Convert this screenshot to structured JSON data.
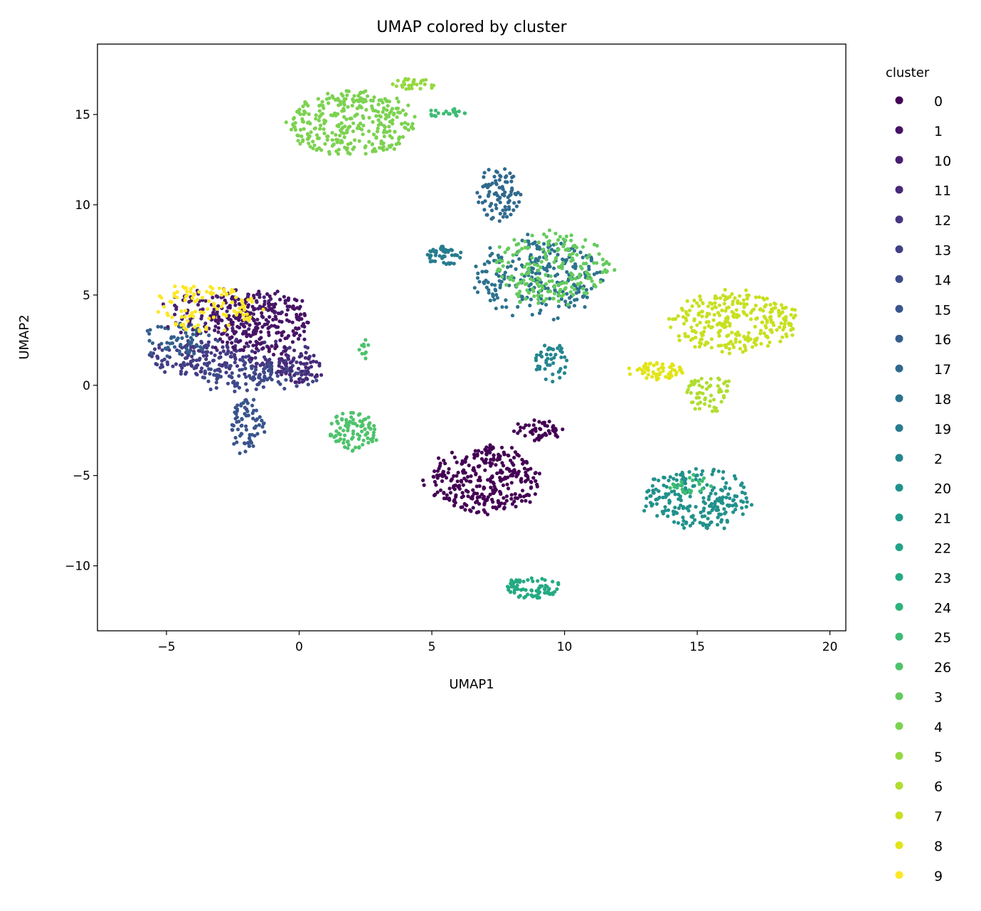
{
  "chart_data": {
    "type": "scatter",
    "title": "UMAP colored by cluster",
    "xlabel": "UMAP1",
    "ylabel": "UMAP2",
    "xlim": [
      -7.6,
      20.6
    ],
    "ylim": [
      -13.6,
      18.9
    ],
    "xticks": [
      -5,
      0,
      5,
      10,
      15,
      20
    ],
    "yticks": [
      -10,
      -5,
      0,
      5,
      10,
      15
    ],
    "xtick_labels": [
      "−5",
      "0",
      "5",
      "10",
      "15",
      "20"
    ],
    "ytick_labels": [
      "−10",
      "−5",
      "0",
      "5",
      "10",
      "15"
    ],
    "grid": false,
    "legend": {
      "title": "cluster",
      "placement": "right-outside",
      "entries": [
        {
          "label": "0",
          "color": "#440154"
        },
        {
          "label": "1",
          "color": "#471365"
        },
        {
          "label": "10",
          "color": "#481f70"
        },
        {
          "label": "11",
          "color": "#482878"
        },
        {
          "label": "12",
          "color": "#453581"
        },
        {
          "label": "13",
          "color": "#423f85"
        },
        {
          "label": "14",
          "color": "#3e4a89"
        },
        {
          "label": "15",
          "color": "#39558c"
        },
        {
          "label": "16",
          "color": "#345f8d"
        },
        {
          "label": "17",
          "color": "#30698e"
        },
        {
          "label": "18",
          "color": "#2c728e"
        },
        {
          "label": "19",
          "color": "#287c8e"
        },
        {
          "label": "2",
          "color": "#24868e"
        },
        {
          "label": "20",
          "color": "#21918c"
        },
        {
          "label": "21",
          "color": "#1f9a8a"
        },
        {
          "label": "22",
          "color": "#20a386"
        },
        {
          "label": "23",
          "color": "#24aa83"
        },
        {
          "label": "24",
          "color": "#2eb37c"
        },
        {
          "label": "25",
          "color": "#3dbc74"
        },
        {
          "label": "26",
          "color": "#4ec36b"
        },
        {
          "label": "3",
          "color": "#65cb5e"
        },
        {
          "label": "4",
          "color": "#7cd250"
        },
        {
          "label": "5",
          "color": "#95d840"
        },
        {
          "label": "6",
          "color": "#b0dd2f"
        },
        {
          "label": "7",
          "color": "#c8e020"
        },
        {
          "label": "8",
          "color": "#e2e418"
        },
        {
          "label": "9",
          "color": "#fde725"
        }
      ]
    },
    "clusters_approx": [
      {
        "cluster": "12",
        "cx": -2,
        "cy": 1.5,
        "sx": 3.0,
        "sy": 1.2,
        "n": 130
      },
      {
        "cluster": "13",
        "cx": -4,
        "cy": 1.5,
        "sx": 2.0,
        "sy": 1.0,
        "n": 90
      },
      {
        "cluster": "14",
        "cx": -1.5,
        "cy": 0.5,
        "sx": 2.5,
        "sy": 1.0,
        "n": 110
      },
      {
        "cluster": "16",
        "cx": -4.5,
        "cy": 2.5,
        "sx": 1.5,
        "sy": 1.0,
        "n": 60
      },
      {
        "cluster": "15",
        "cx": -2,
        "cy": -2.3,
        "sx": 0.7,
        "sy": 1.6,
        "n": 80
      },
      {
        "cluster": "11",
        "cx": 0,
        "cy": 1.0,
        "sx": 1.0,
        "sy": 1.0,
        "n": 60
      },
      {
        "cluster": "10",
        "cx": -3,
        "cy": 4.0,
        "sx": 2.5,
        "sy": 1.5,
        "n": 130
      },
      {
        "cluster": "1",
        "cx": -1.5,
        "cy": 3.5,
        "sx": 2.1,
        "sy": 2.0,
        "n": 220
      },
      {
        "cluster": "9",
        "cx": -3.5,
        "cy": 4.3,
        "sx": 2.2,
        "sy": 1.4,
        "n": 110
      },
      {
        "cluster": "26",
        "cx": 2,
        "cy": -2.5,
        "sx": 1.0,
        "sy": 1.2,
        "n": 90
      },
      {
        "cluster": "26",
        "cx": 2.5,
        "cy": 2.0,
        "sx": 0.3,
        "sy": 0.6,
        "n": 10
      },
      {
        "cluster": "4",
        "cx": 2,
        "cy": 14.5,
        "sx": 2.6,
        "sy": 2.0,
        "n": 320
      },
      {
        "cluster": "5",
        "cx": 4.3,
        "cy": 16.7,
        "sx": 1.0,
        "sy": 0.35,
        "n": 30
      },
      {
        "cluster": "25",
        "cx": 5.5,
        "cy": 15.1,
        "sx": 0.9,
        "sy": 0.25,
        "n": 20
      },
      {
        "cluster": "17",
        "cx": 7.5,
        "cy": 10.5,
        "sx": 0.9,
        "sy": 1.6,
        "n": 90
      },
      {
        "cluster": "19",
        "cx": 5.5,
        "cy": 7.2,
        "sx": 0.8,
        "sy": 0.6,
        "n": 45
      },
      {
        "cluster": "18",
        "cx": 9,
        "cy": 6.0,
        "sx": 2.6,
        "sy": 2.3,
        "n": 260
      },
      {
        "cluster": "2",
        "cx": 9.5,
        "cy": 1.3,
        "sx": 0.7,
        "sy": 1.2,
        "n": 45
      },
      {
        "cluster": "3",
        "cx": 9.5,
        "cy": 6.5,
        "sx": 2.3,
        "sy": 2.2,
        "n": 200
      },
      {
        "cluster": "0",
        "cx": 7,
        "cy": -5.2,
        "sx": 2.3,
        "sy": 2.0,
        "n": 320
      },
      {
        "cluster": "0",
        "cx": 9,
        "cy": -2.5,
        "sx": 1.0,
        "sy": 0.6,
        "n": 50
      },
      {
        "cluster": "23",
        "cx": 8.8,
        "cy": -11.2,
        "sx": 1.2,
        "sy": 0.6,
        "n": 80
      },
      {
        "cluster": "20",
        "cx": 15,
        "cy": -6.3,
        "sx": 2.2,
        "sy": 1.8,
        "n": 220
      },
      {
        "cluster": "25",
        "cx": 14.8,
        "cy": -5.5,
        "sx": 0.8,
        "sy": 0.6,
        "n": 25
      },
      {
        "cluster": "7",
        "cx": 16.5,
        "cy": 3.5,
        "sx": 2.6,
        "sy": 1.8,
        "n": 280
      },
      {
        "cluster": "8",
        "cx": 13.5,
        "cy": 0.8,
        "sx": 1.3,
        "sy": 0.5,
        "n": 60
      },
      {
        "cluster": "6",
        "cx": 15.5,
        "cy": -0.5,
        "sx": 1.0,
        "sy": 1.1,
        "n": 60
      }
    ]
  }
}
